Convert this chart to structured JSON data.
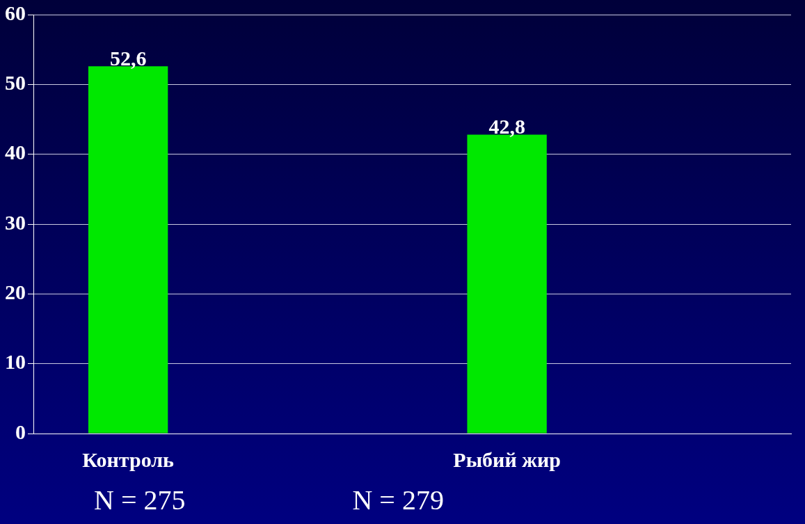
{
  "chart_data": {
    "type": "bar",
    "categories": [
      "Контроль",
      null,
      "Рыбий жир",
      null
    ],
    "values": [
      52.6,
      null,
      42.8,
      null
    ],
    "value_labels": [
      "52,6",
      null,
      "42,8",
      null
    ],
    "color": "#00e800",
    "ylim": [
      0,
      60
    ],
    "yticks": [
      0,
      10,
      20,
      30,
      40,
      50,
      60
    ],
    "grid": "y",
    "annotations": [
      "N = 275",
      "N = 279"
    ]
  }
}
